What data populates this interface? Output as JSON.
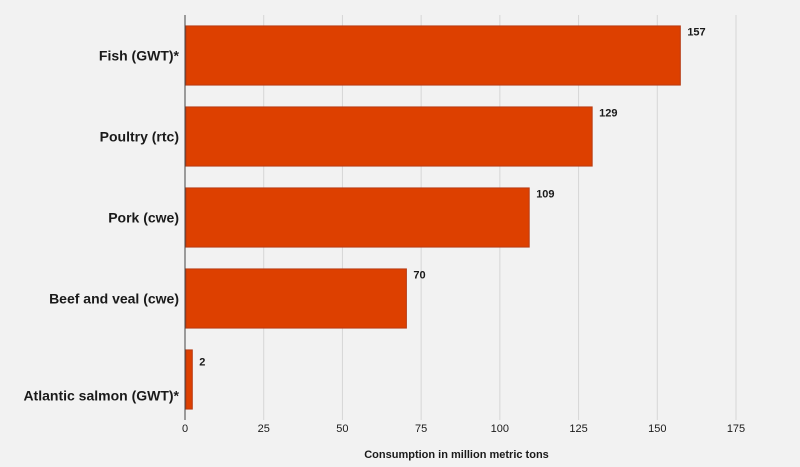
{
  "chart_data": {
    "type": "bar",
    "orientation": "horizontal",
    "categories": [
      "Fish (GWT)*",
      "Poultry (rtc)",
      "Pork (cwe)",
      "Beef and veal (cwe)",
      "Atlantic salmon (GWT)*"
    ],
    "values": [
      157,
      129,
      109,
      70,
      2
    ],
    "data_labels": [
      "157",
      "129",
      "109",
      "70",
      "2"
    ],
    "xlabel": "Consumption in million metric tons",
    "ylabel": "",
    "xlim": [
      0,
      175
    ],
    "xticks": [
      0,
      25,
      50,
      75,
      100,
      125,
      150,
      175
    ],
    "tick_labels": [
      "0",
      "25",
      "50",
      "75",
      "100",
      "125",
      "150",
      "175"
    ],
    "grid": true,
    "legend": "none",
    "bar_color": "#dd4000",
    "bar_edge_color": "#b83a12"
  }
}
